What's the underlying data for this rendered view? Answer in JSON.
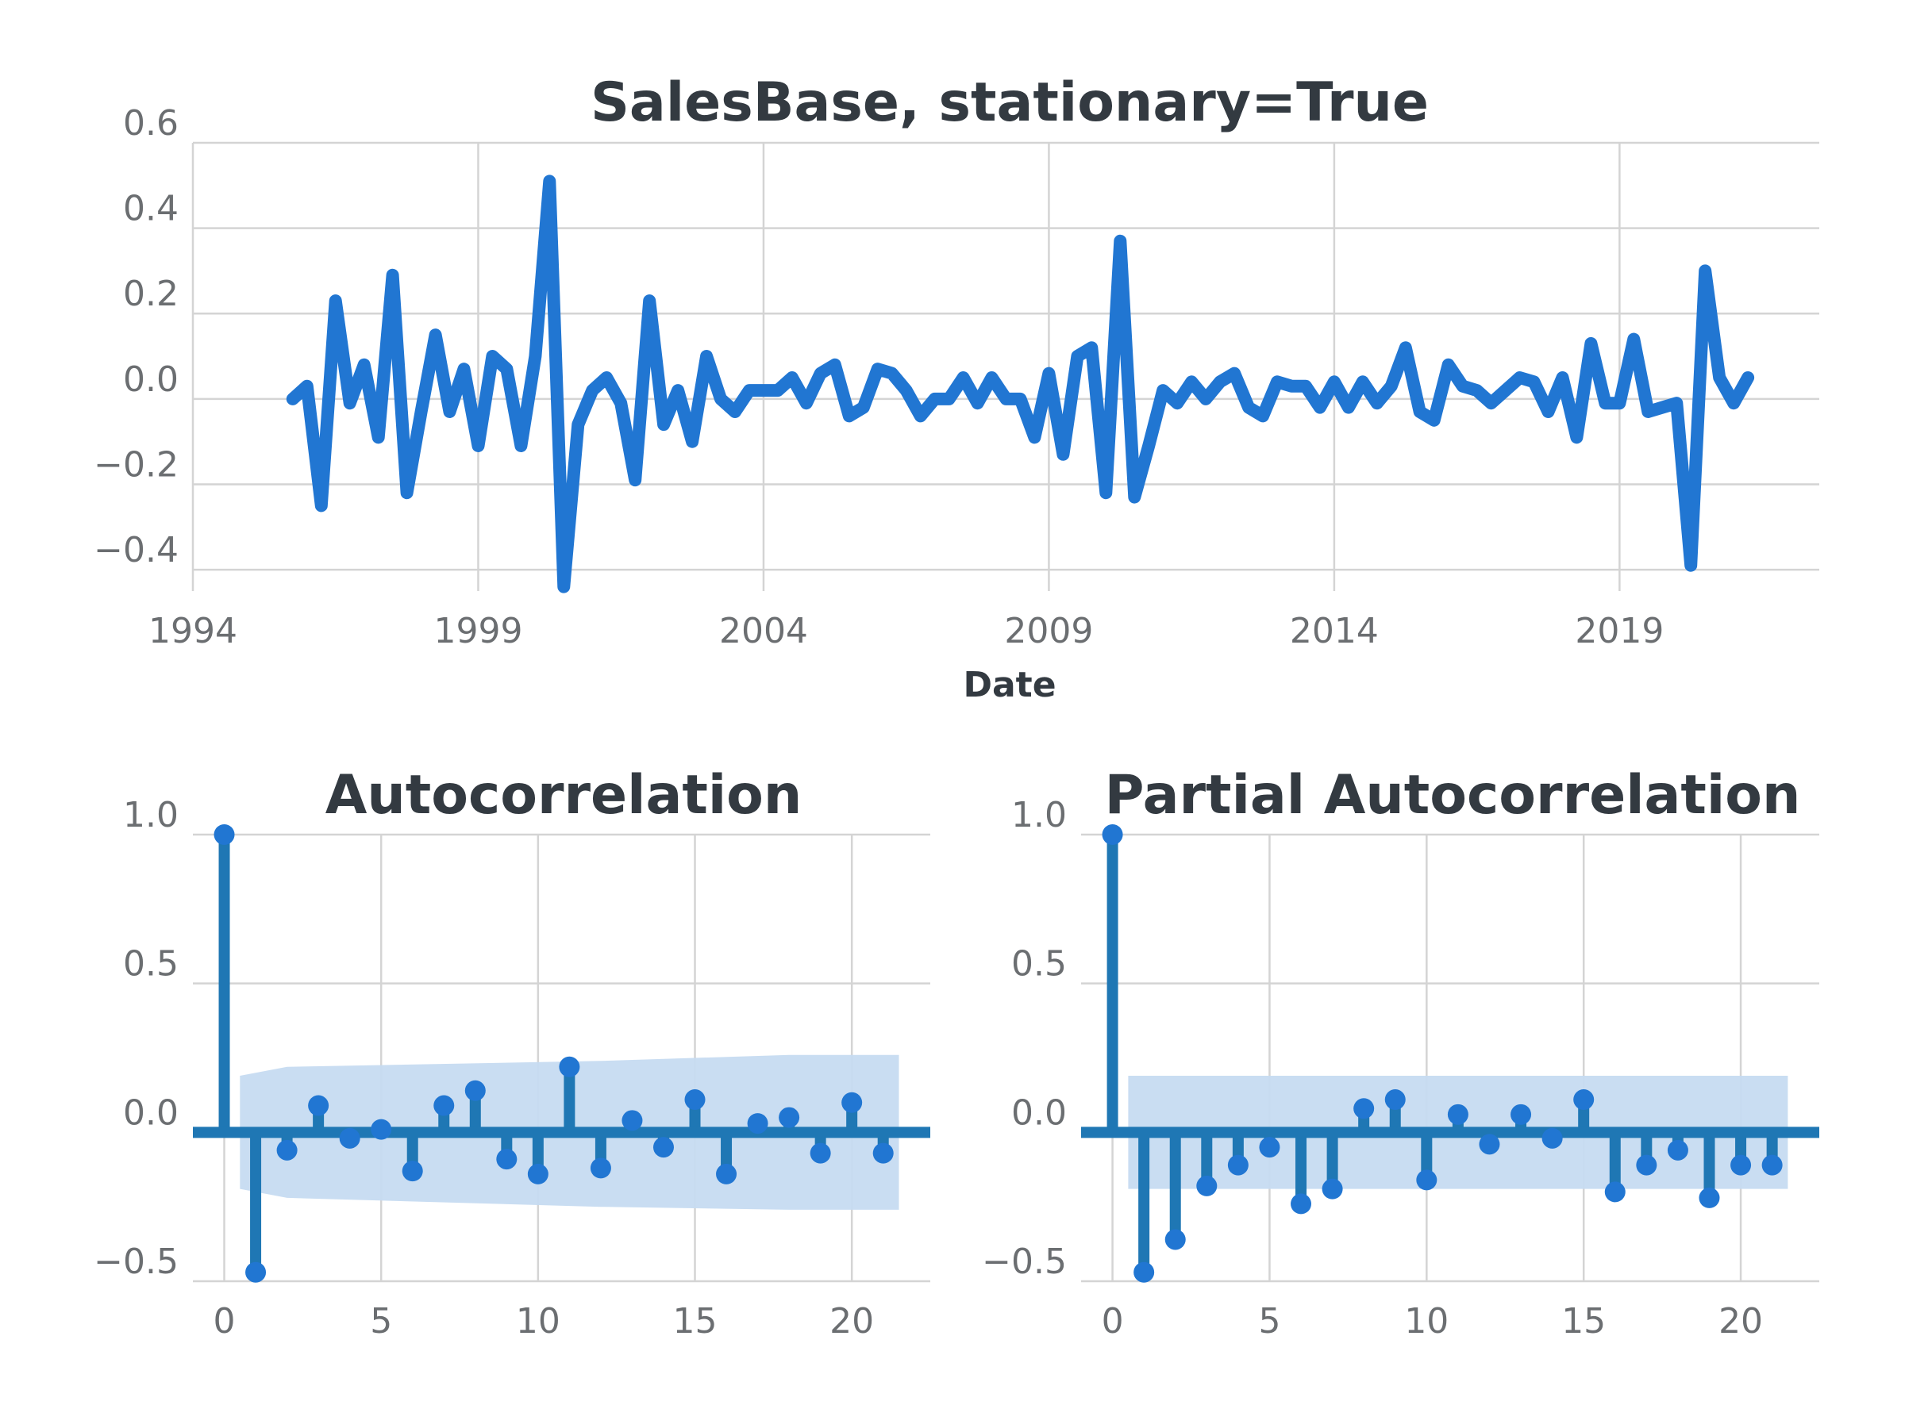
{
  "chart_data": [
    {
      "type": "line",
      "title": "SalesBase, stationary=True",
      "xlabel": "Date",
      "ylabel": "",
      "xlim": [
        1994,
        2022.5
      ],
      "ylim": [
        -0.45,
        0.6
      ],
      "x_ticks": [
        "1994",
        "1999",
        "2004",
        "2009",
        "2014",
        "2019"
      ],
      "x_tick_values": [
        1994,
        1999,
        2004,
        2009,
        2014,
        2019
      ],
      "y_ticks": [
        "0.6",
        "0.4",
        "0.2",
        "0.0",
        "−0.2",
        "−0.4"
      ],
      "y_tick_values": [
        0.6,
        0.4,
        0.2,
        0.0,
        -0.2,
        -0.4
      ],
      "grid": true,
      "color": "#2176d2",
      "series": [
        {
          "x": [
            1995.75,
            1996.0,
            1996.25,
            1996.5,
            1996.75,
            1997.0,
            1997.25,
            1997.5,
            1997.75,
            1998.0,
            1998.25,
            1998.5,
            1998.75,
            1999.0,
            1999.25,
            1999.5,
            1999.75,
            2000.0,
            2000.25,
            2000.5,
            2000.75,
            2001.0,
            2001.25,
            2001.5,
            2001.75,
            2002.0,
            2002.25,
            2002.5,
            2002.75,
            2003.0,
            2003.25,
            2003.5,
            2003.75,
            2004.0,
            2004.25,
            2004.5,
            2004.75,
            2005.0,
            2005.25,
            2005.5,
            2005.75,
            2006.0,
            2006.25,
            2006.5,
            2006.75,
            2007.0,
            2007.25,
            2007.5,
            2007.75,
            2008.0,
            2008.25,
            2008.5,
            2008.75,
            2009.0,
            2009.25,
            2009.5,
            2009.75,
            2010.0,
            2010.25,
            2010.5,
            2010.75,
            2011.0,
            2011.25,
            2011.5,
            2011.75,
            2012.0,
            2012.25,
            2012.5,
            2012.75,
            2013.0,
            2013.25,
            2013.5,
            2013.75,
            2014.0,
            2014.25,
            2014.5,
            2014.75,
            2015.0,
            2015.25,
            2015.5,
            2015.75,
            2016.0,
            2016.25,
            2016.5,
            2016.75,
            2017.0,
            2017.25,
            2017.5,
            2017.75,
            2018.0,
            2018.25,
            2018.5,
            2018.75,
            2019.0,
            2019.25,
            2019.5,
            2019.75,
            2020.0,
            2020.25,
            2020.5,
            2020.75,
            2021.0,
            2021.25
          ],
          "y": [
            0.0,
            0.03,
            -0.25,
            0.23,
            -0.01,
            0.08,
            -0.09,
            0.29,
            -0.22,
            -0.03,
            0.15,
            -0.03,
            0.07,
            -0.11,
            0.1,
            0.07,
            -0.11,
            0.1,
            0.51,
            -0.44,
            -0.06,
            0.02,
            0.05,
            -0.01,
            -0.19,
            0.23,
            -0.06,
            0.02,
            -0.1,
            0.1,
            0.0,
            -0.03,
            0.02,
            0.02,
            0.02,
            0.05,
            -0.01,
            0.06,
            0.08,
            -0.04,
            -0.02,
            0.07,
            0.06,
            0.02,
            -0.04,
            0.0,
            0.0,
            0.05,
            -0.01,
            0.05,
            0.0,
            0.0,
            -0.09,
            0.06,
            -0.13,
            0.1,
            0.12,
            -0.22,
            0.37,
            -0.23,
            -0.11,
            0.02,
            -0.01,
            0.04,
            0.0,
            0.04,
            0.06,
            -0.02,
            -0.04,
            0.04,
            0.03,
            0.03,
            -0.02,
            0.04,
            -0.02,
            0.04,
            -0.01,
            0.03,
            0.12,
            -0.03,
            -0.05,
            0.08,
            0.03,
            0.02,
            -0.01,
            0.02,
            0.05,
            0.04,
            -0.03,
            0.05,
            -0.09,
            0.13,
            -0.01,
            -0.01,
            0.14,
            -0.03,
            -0.02,
            -0.01,
            -0.39,
            0.3,
            0.05,
            -0.01,
            0.05
          ]
        }
      ]
    },
    {
      "type": "stem",
      "title": "Autocorrelation",
      "xlabel": "",
      "ylabel": "",
      "xlim": [
        -1,
        22.5
      ],
      "ylim": [
        -0.5,
        1.0
      ],
      "x_ticks": [
        "0",
        "5",
        "10",
        "15",
        "20"
      ],
      "x_tick_values": [
        0,
        5,
        10,
        15,
        20
      ],
      "y_ticks": [
        "1.0",
        "0.5",
        "0.0",
        "−0.5"
      ],
      "y_tick_values": [
        1.0,
        0.5,
        0.0,
        -0.5
      ],
      "grid": true,
      "stem_color": "#1f77b4",
      "marker_color": "#2176d2",
      "band_color": "#c6dbf1",
      "lags": [
        0,
        1,
        2,
        3,
        4,
        5,
        6,
        7,
        8,
        9,
        10,
        11,
        12,
        13,
        14,
        15,
        16,
        17,
        18,
        19,
        20,
        21
      ],
      "values": [
        1.0,
        -0.47,
        -0.06,
        0.09,
        -0.02,
        0.01,
        -0.13,
        0.09,
        0.14,
        -0.09,
        -0.14,
        0.22,
        -0.12,
        0.04,
        -0.05,
        0.11,
        -0.14,
        0.03,
        0.05,
        -0.07,
        0.1,
        -0.07
      ],
      "band": {
        "x": [
          0.5,
          2,
          12,
          18,
          21.5
        ],
        "upper": [
          0.19,
          0.22,
          0.24,
          0.26,
          0.26
        ],
        "lower": [
          -0.19,
          -0.22,
          -0.25,
          -0.26,
          -0.26
        ]
      }
    },
    {
      "type": "stem",
      "title": "Partial Autocorrelation",
      "xlabel": "",
      "ylabel": "",
      "xlim": [
        -1,
        22.5
      ],
      "ylim": [
        -0.5,
        1.0
      ],
      "x_ticks": [
        "0",
        "5",
        "10",
        "15",
        "20"
      ],
      "x_tick_values": [
        0,
        5,
        10,
        15,
        20
      ],
      "y_ticks": [
        "1.0",
        "0.5",
        "0.0",
        "−0.5"
      ],
      "y_tick_values": [
        1.0,
        0.5,
        0.0,
        -0.5
      ],
      "grid": true,
      "stem_color": "#1f77b4",
      "marker_color": "#2176d2",
      "band_color": "#c6dbf1",
      "lags": [
        0,
        1,
        2,
        3,
        4,
        5,
        6,
        7,
        8,
        9,
        10,
        11,
        12,
        13,
        14,
        15,
        16,
        17,
        18,
        19,
        20,
        21
      ],
      "values": [
        1.0,
        -0.47,
        -0.36,
        -0.18,
        -0.11,
        -0.05,
        -0.24,
        -0.19,
        0.08,
        0.11,
        -0.16,
        0.06,
        -0.04,
        0.06,
        -0.02,
        0.11,
        -0.2,
        -0.11,
        -0.06,
        -0.22,
        -0.11,
        -0.11
      ],
      "band": {
        "x": [
          0.5,
          21.5
        ],
        "upper": [
          0.19,
          0.19
        ],
        "lower": [
          -0.19,
          -0.19
        ]
      }
    }
  ]
}
